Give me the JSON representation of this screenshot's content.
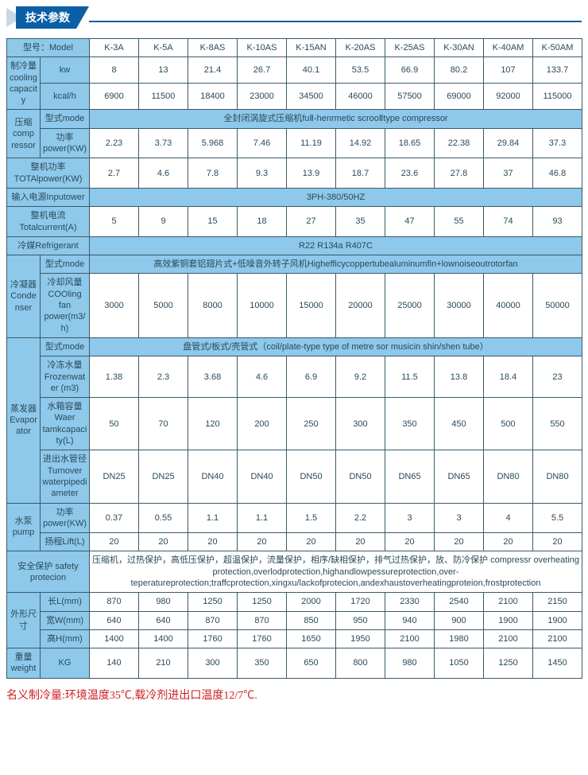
{
  "header_title": "技术参数",
  "models": [
    "K-3A",
    "K-5A",
    "K-8AS",
    "K-10AS",
    "K-15AN",
    "K-20AS",
    "K-25AS",
    "K-30AN",
    "K-40AM",
    "K-50AM"
  ],
  "row_model_label": "型号：Model",
  "cooling": {
    "group": "制冷量\ncooling capacity",
    "kw_label": "kw",
    "kw": [
      "8",
      "13",
      "21.4",
      "26.7",
      "40.1",
      "53.5",
      "66.9",
      "80.2",
      "107",
      "133.7"
    ],
    "kcal_label": "kcal/h",
    "kcal": [
      "6900",
      "11500",
      "18400",
      "23000",
      "34500",
      "46000",
      "57500",
      "69000",
      "92000",
      "115000"
    ]
  },
  "compressor": {
    "group": "压缩comp ressor",
    "type_label": "型式mode",
    "type_text": "全封闭涡旋式压缩机fuⅡ-henrmetic scrooⅡtype compressor",
    "power_label": "功率power(KW)",
    "power": [
      "2.23",
      "3.73",
      "5.968",
      "7.46",
      "11.19",
      "14.92",
      "18.65",
      "22.38",
      "29.84",
      "37.3"
    ]
  },
  "total_power": {
    "label": "整机功率\nTOTAlpower(KW)",
    "vals": [
      "2.7",
      "4.6",
      "7.8",
      "9.3",
      "13.9",
      "18.7",
      "23.6",
      "27.8",
      "37",
      "46.8"
    ]
  },
  "input_power": {
    "label": "输入电源Inputower",
    "text": "3PH-380/50HZ"
  },
  "total_current": {
    "label": "整机电流\nTotalcurrent(A)",
    "vals": [
      "5",
      "9",
      "15",
      "18",
      "27",
      "35",
      "47",
      "55",
      "74",
      "93"
    ]
  },
  "refrigerant": {
    "label": "冷媒Refrigerant",
    "text": "R22 R134a R407C"
  },
  "condenser": {
    "group": "冷凝器Condenser",
    "type_label": "型式mode",
    "type_text": "高效紫铜套铝翅片式+低噪音外转子风机Highefficycoppertubealuminumfin+lownoiseoutrotorfan",
    "fan_label": "冷却风量COOling fan power(m3/h)",
    "fan": [
      "3000",
      "5000",
      "8000",
      "10000",
      "15000",
      "20000",
      "25000",
      "30000",
      "40000",
      "50000"
    ]
  },
  "evap": {
    "group": "蒸发器Evaporator",
    "type_label": "型式mode",
    "type_text": "盘管式/板式/壳管式（coil/plate-type type of metre sor musicin shin/shen tube）",
    "frozen_label": "冷冻水量Frozenwater (m3)",
    "frozen": [
      "1.38",
      "2.3",
      "3.68",
      "4.6",
      "6.9",
      "9.2",
      "11.5",
      "13.8",
      "18.4",
      "23"
    ],
    "tank_label": "水箱容量Waer tamkcapacity(L)",
    "tank": [
      "50",
      "70",
      "120",
      "200",
      "250",
      "300",
      "350",
      "450",
      "500",
      "550"
    ],
    "pipe_label": "进出水管径Turnover waterpipedi ameter",
    "pipe": [
      "DN25",
      "DN25",
      "DN40",
      "DN40",
      "DN50",
      "DN50",
      "DN65",
      "DN65",
      "DN80",
      "DN80"
    ]
  },
  "pump": {
    "group": "水泵pump",
    "power_label": "功率power(KW)",
    "power": [
      "0.37",
      "0.55",
      "1.1",
      "1.1",
      "1.5",
      "2.2",
      "3",
      "3",
      "4",
      "5.5"
    ],
    "lift_label": "扬程Lift(L)",
    "lift": [
      "20",
      "20",
      "20",
      "20",
      "20",
      "20",
      "20",
      "20",
      "20",
      "20"
    ]
  },
  "safety": {
    "label": "安全保护\nsafety protecion",
    "text": "压缩机，过热保护，高低压保护，超温保护，流量保护，相序/缺相保护，排气过热保护，放、防冷保护\ncompressr overheating protection,overlodprotection,highandlowpessureprotection,over-teperatureprotection;traffcprotection,xingxu/lackofprotecion,andexhaustoverheatingproteion,frostprotection"
  },
  "dims": {
    "group": "外形尺寸",
    "L_label": "长L(mm)",
    "L": [
      "870",
      "980",
      "1250",
      "1250",
      "2000",
      "1720",
      "2330",
      "2540",
      "2100",
      "2150"
    ],
    "W_label": "宽W(mm)",
    "W": [
      "640",
      "640",
      "870",
      "870",
      "850",
      "950",
      "940",
      "900",
      "1900",
      "1900"
    ],
    "H_label": "高H(mm)",
    "H": [
      "1400",
      "1400",
      "1760",
      "1760",
      "1650",
      "1950",
      "2100",
      "1980",
      "2100",
      "2100"
    ]
  },
  "weight": {
    "group": "重量weight",
    "kg_label": "KG",
    "kg": [
      "140",
      "210",
      "300",
      "350",
      "650",
      "800",
      "980",
      "1050",
      "1250",
      "1450"
    ]
  },
  "footnote": "名义制冷量:环境温度35℃,载冷剂进出口温度12/7℃."
}
